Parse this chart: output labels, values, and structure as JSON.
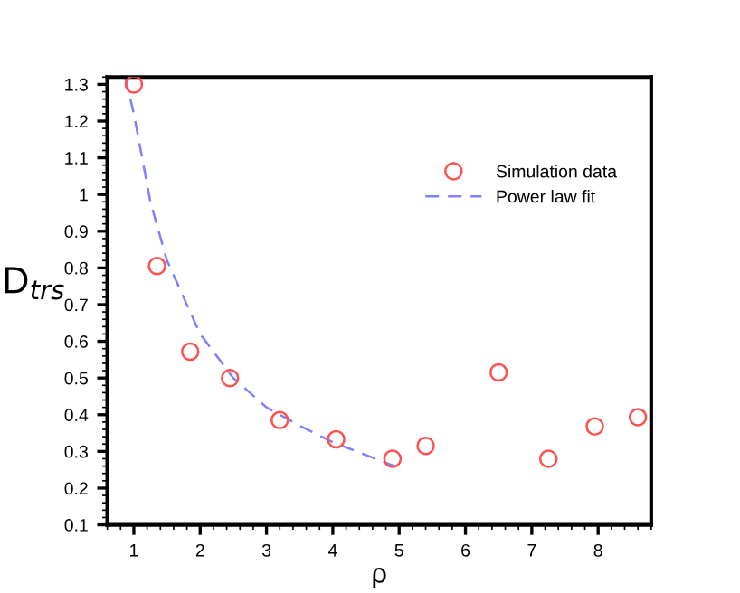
{
  "chart_data": {
    "type": "scatter",
    "xlabel": "ρ",
    "ylabel": "D$_{trs}$",
    "xlim": [
      0.6,
      8.8
    ],
    "ylim": [
      0.1,
      1.32
    ],
    "xticks": [
      1,
      2,
      3,
      4,
      5,
      6,
      7,
      8
    ],
    "yticks": [
      {
        "value": 0.1,
        "label": "0.1"
      },
      {
        "value": 0.2,
        "label": "0.2"
      },
      {
        "value": 0.3,
        "label": "0.3"
      },
      {
        "value": 0.4,
        "label": "0.4"
      },
      {
        "value": 0.5,
        "label": "0.5"
      },
      {
        "value": 0.6,
        "label": "0.6"
      },
      {
        "value": 0.7,
        "label": "0.7"
      },
      {
        "value": 0.8,
        "label": "0.8"
      },
      {
        "value": 0.9,
        "label": "0.9"
      },
      {
        "value": 1,
        "label": "1"
      },
      {
        "value": 1.1,
        "label": "1.1"
      },
      {
        "value": 1.2,
        "label": "1.2"
      },
      {
        "value": 1.3,
        "label": "1.3"
      }
    ],
    "legend": "top right",
    "grid": false,
    "series": [
      {
        "name": "Simulation data",
        "marker": "circle",
        "color": "#ff5050",
        "x": [
          1,
          1.35,
          1.85,
          2.45,
          3.2,
          4.05,
          4.9,
          5.4,
          6.5,
          7.25,
          7.95,
          8.6
        ],
        "values": [
          1.3,
          0.805,
          0.572,
          0.5,
          0.385,
          0.333,
          0.28,
          0.315,
          0.515,
          0.28,
          0.368,
          0.393
        ]
      },
      {
        "name": "Power law fit",
        "type": "line",
        "line_style": "dashed",
        "color": "#8080ff",
        "x": [
          0.87,
          1,
          1.25,
          1.5,
          2,
          2.5,
          3,
          3.5,
          4,
          4.5,
          5
        ],
        "values": [
          1.32,
          1.22,
          0.98,
          0.82,
          0.62,
          0.5,
          0.42,
          0.37,
          0.325,
          0.29,
          0.255
        ]
      }
    ]
  }
}
